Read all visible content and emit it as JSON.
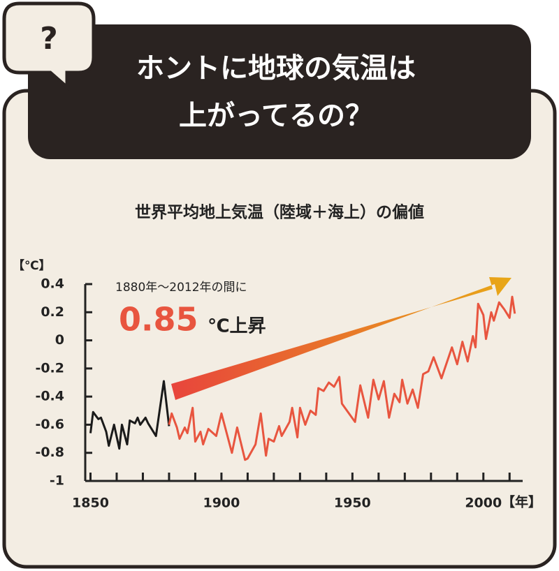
{
  "header": {
    "badge": "?",
    "title_line1": "ホントに地球の気温は",
    "title_line2": "上がってるの？"
  },
  "chart_data": {
    "type": "line",
    "title": "世界平均地上気温（陸域＋海上）の偏値",
    "y_unit_label": "【℃】",
    "x_unit_label": "【年】",
    "annotation_line1": "1880年～2012年の間に",
    "annotation_value": "0.85",
    "annotation_suffix": "℃上昇",
    "arrow_colors": [
      "#e8453c",
      "#e8a817"
    ],
    "xlim": [
      1848,
      2015
    ],
    "xticks": [
      1850,
      1900,
      1950,
      2000
    ],
    "xminorticks": [
      1860,
      1870,
      1880,
      1890,
      1910,
      1920,
      1930,
      1940,
      1960,
      1970,
      1980,
      1990,
      2010
    ],
    "ylim": [
      -1,
      0.4
    ],
    "yticks": [
      0.4,
      0.2,
      0,
      -0.2,
      -0.4,
      -0.6,
      -0.8,
      -1
    ],
    "series": [
      {
        "color": "#1a1a1a",
        "x": [
          1850,
          1851,
          1853,
          1854,
          1856,
          1857,
          1859,
          1861,
          1862,
          1864,
          1865,
          1867,
          1868,
          1869,
          1871,
          1872,
          1875,
          1878,
          1880
        ],
        "values": [
          -0.66,
          -0.51,
          -0.56,
          -0.55,
          -0.65,
          -0.75,
          -0.6,
          -0.77,
          -0.6,
          -0.74,
          -0.57,
          -0.59,
          -0.55,
          -0.6,
          -0.55,
          -0.59,
          -0.68,
          -0.29,
          -0.61
        ]
      },
      {
        "color": "#e8553f",
        "x": [
          1880,
          1881,
          1883,
          1884,
          1886,
          1887,
          1889,
          1890,
          1892,
          1893,
          1895,
          1898,
          1900,
          1902,
          1904,
          1906,
          1909,
          1910,
          1913,
          1915,
          1917,
          1918,
          1920,
          1922,
          1923,
          1926,
          1927,
          1929,
          1930,
          1932,
          1934,
          1936,
          1937,
          1939,
          1941,
          1943,
          1945,
          1946,
          1951,
          1953,
          1956,
          1958,
          1960,
          1962,
          1964,
          1966,
          1968,
          1969,
          1971,
          1973,
          1975,
          1977,
          1979,
          1981,
          1984,
          1988,
          1990,
          1992,
          1994,
          1996,
          1997,
          1998,
          2000,
          2001,
          2003,
          2004,
          2006,
          2008,
          2010,
          2011,
          2012
        ],
        "values": [
          -0.6,
          -0.52,
          -0.62,
          -0.7,
          -0.62,
          -0.66,
          -0.48,
          -0.72,
          -0.65,
          -0.74,
          -0.63,
          -0.68,
          -0.52,
          -0.66,
          -0.8,
          -0.62,
          -0.85,
          -0.84,
          -0.74,
          -0.52,
          -0.82,
          -0.7,
          -0.72,
          -0.61,
          -0.68,
          -0.58,
          -0.48,
          -0.69,
          -0.48,
          -0.6,
          -0.5,
          -0.53,
          -0.34,
          -0.36,
          -0.3,
          -0.33,
          -0.26,
          -0.45,
          -0.58,
          -0.32,
          -0.55,
          -0.28,
          -0.42,
          -0.29,
          -0.55,
          -0.38,
          -0.44,
          -0.28,
          -0.45,
          -0.35,
          -0.48,
          -0.24,
          -0.22,
          -0.12,
          -0.27,
          -0.05,
          -0.17,
          -0.01,
          -0.15,
          0.03,
          -0.05,
          0.26,
          0.18,
          0.01,
          0.2,
          0.14,
          0.27,
          0.22,
          0.16,
          0.31,
          0.19
        ]
      }
    ]
  }
}
